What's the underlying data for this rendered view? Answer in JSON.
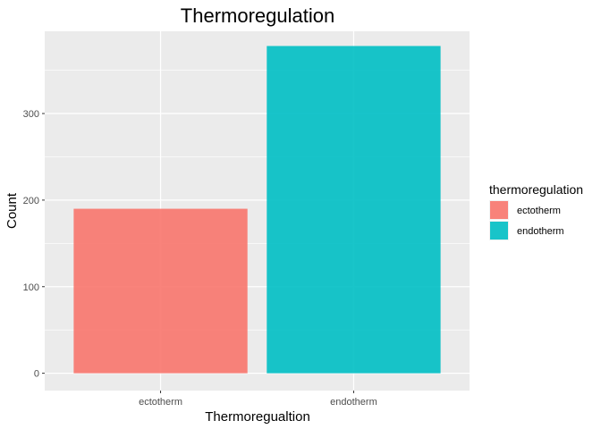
{
  "chart_data": {
    "type": "bar",
    "title": "Thermoregulation",
    "xlabel": "Thermoregualtion",
    "ylabel": "Count",
    "categories": [
      "ectotherm",
      "endotherm"
    ],
    "values": [
      190,
      378
    ],
    "colors": [
      "#F8766D",
      "#00BFC4"
    ],
    "ylim": [
      0,
      395
    ],
    "yticks": [
      0,
      100,
      200,
      300
    ],
    "grid": true,
    "panel_background": "#EBEBEB",
    "legend": {
      "title": "thermoregulation",
      "placement": "right",
      "entries": [
        "ectotherm",
        "endotherm"
      ]
    }
  }
}
